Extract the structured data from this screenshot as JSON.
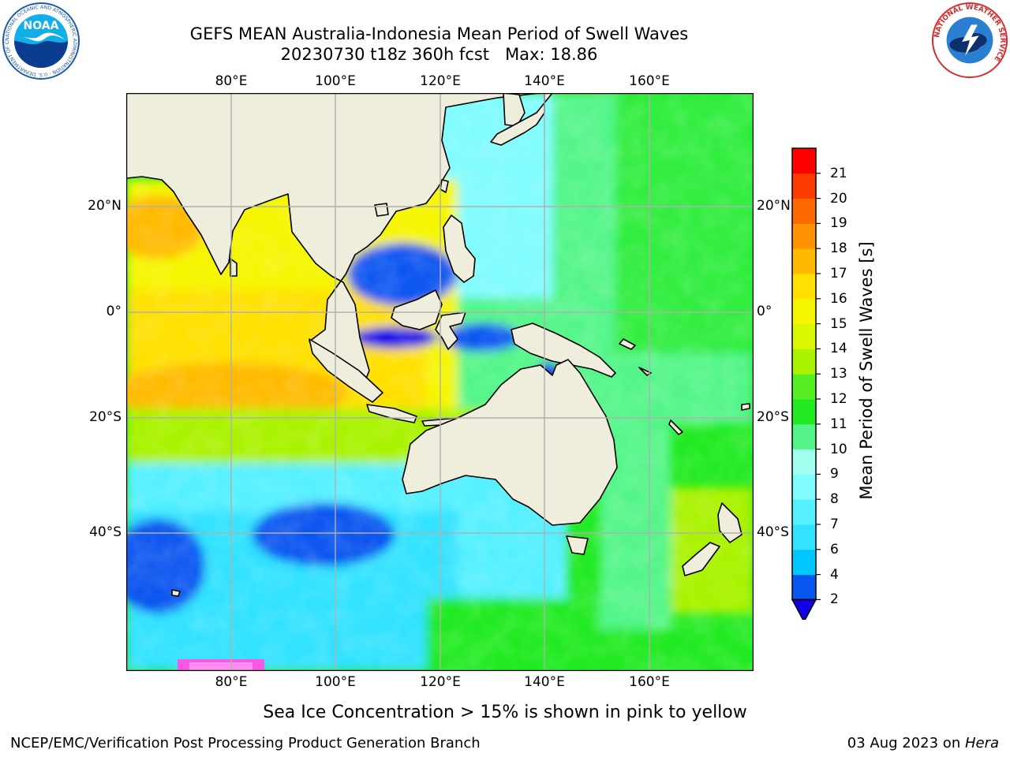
{
  "title": {
    "line1": "GEFS MEAN Australia-Indonesia Mean Period of Swell Waves",
    "line2": "20230730 t18z 360h fcst   Max: 18.86"
  },
  "map": {
    "longitude_labels": [
      "80°E",
      "100°E",
      "120°E",
      "140°E",
      "160°E"
    ],
    "latitude_labels": [
      "20°N",
      "0°",
      "20°S",
      "40°S"
    ],
    "extent": {
      "lon": [
        60,
        180
      ],
      "lat": [
        -68,
        42
      ]
    },
    "gridlines": true
  },
  "colorbar": {
    "label": "Mean Period of Swell Waves [s]",
    "ticks": [
      "2",
      "4",
      "6",
      "7",
      "8",
      "9",
      "10",
      "11",
      "12",
      "13",
      "14",
      "15",
      "16",
      "17",
      "18",
      "19",
      "20",
      "21"
    ],
    "colors": [
      "#0a56f0",
      "#00c8ff",
      "#33e2ff",
      "#55f0ff",
      "#80fbff",
      "#a0ffef",
      "#55f58a",
      "#22ea22",
      "#55ee22",
      "#aaf200",
      "#d9f700",
      "#f5f500",
      "#ffe000",
      "#ffba00",
      "#ff9200",
      "#ff6a00",
      "#ff3c00",
      "#ff0000"
    ],
    "extend_color": "#1200e6"
  },
  "footer": {
    "note": "Sea Ice Concentration > 15% is shown in pink to yellow",
    "left": "NCEP/EMC/Verification Post Processing Product Generation Branch",
    "right_date": "03 Aug 2023 on ",
    "right_host": "Hera"
  },
  "logos": {
    "noaa_text": "NOAA",
    "noaa_ring": "NATIONAL OCEANIC AND ATMOSPHERIC ADMINISTRATION · U.S. DEPARTMENT OF COMMERCE",
    "nws_ring": "NATIONAL WEATHER SERVICE"
  }
}
